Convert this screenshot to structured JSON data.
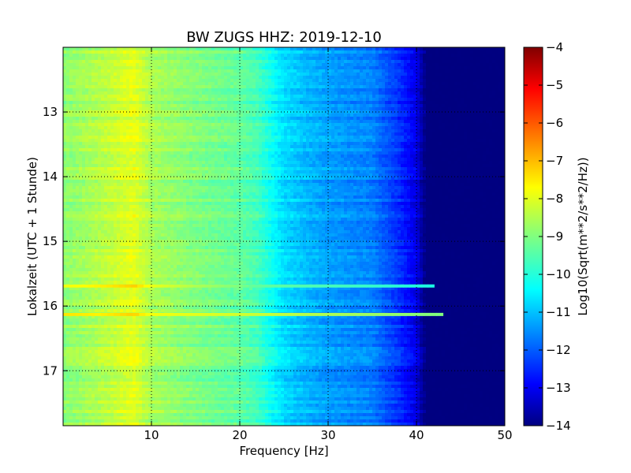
{
  "chart_data": {
    "type": "heatmap",
    "title": "BW ZUGS HHZ: 2019-12-10",
    "xlabel": "Frequency [Hz]",
    "ylabel": "Lokalzeit (UTC + 1 Stunde)",
    "xlim": [
      0,
      50
    ],
    "ylim": [
      17.85,
      12.0
    ],
    "xticks": [
      10,
      20,
      30,
      40,
      50
    ],
    "yticks": [
      13,
      14,
      15,
      16,
      17
    ],
    "grid": true,
    "colorbar": {
      "label": "Log10(Sqrt(m**2/s**2/Hz))",
      "range": [
        -14,
        -4
      ],
      "ticks": [
        -4,
        -5,
        -6,
        -7,
        -8,
        -9,
        -10,
        -11,
        -12,
        -13,
        -14
      ],
      "colormap": "jet"
    },
    "spectrum_profile": {
      "frequency": [
        0,
        5,
        8,
        10,
        15,
        20,
        22,
        25,
        28,
        30,
        35,
        38,
        40,
        41,
        50
      ],
      "value": [
        -8.9,
        -8.4,
        -8.0,
        -8.6,
        -9.0,
        -9.3,
        -9.6,
        -10.6,
        -11.0,
        -11.2,
        -11.5,
        -12.3,
        -13.0,
        -14.0,
        -14.0
      ]
    },
    "annotations": [
      {
        "time": 16.13,
        "description": "horizontal bright band",
        "value": -8.5,
        "f_max": 43
      },
      {
        "time": 15.69,
        "description": "horizontal bright band",
        "value": -9.5,
        "f_max": 42
      }
    ]
  }
}
